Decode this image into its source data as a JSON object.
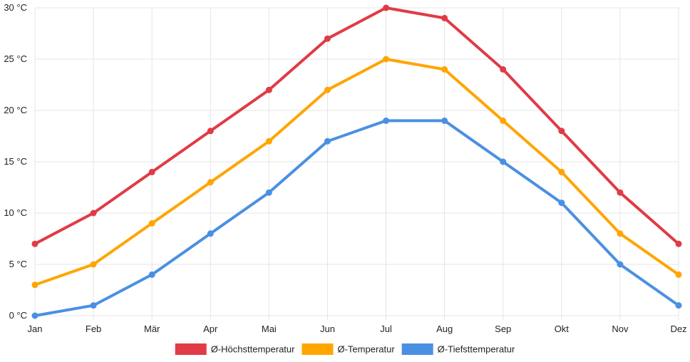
{
  "chart_data": {
    "type": "line",
    "categories": [
      "Jan",
      "Feb",
      "Mär",
      "Apr",
      "Mai",
      "Jun",
      "Jul",
      "Aug",
      "Sep",
      "Okt",
      "Nov",
      "Dez"
    ],
    "y_tick_labels": [
      "0 °C",
      "5 °C",
      "10 °C",
      "15 °C",
      "20 °C",
      "25 °C",
      "30 °C"
    ],
    "ylim": [
      0,
      30
    ],
    "y_tick_step": 5,
    "grid": true,
    "legend_position": "bottom",
    "series": [
      {
        "name": "Ø-Höchsttemperatur",
        "color": "#e03b46",
        "values": [
          7,
          10,
          14,
          18,
          22,
          27,
          30,
          29,
          24,
          18,
          12,
          7
        ]
      },
      {
        "name": "Ø-Temperatur",
        "color": "#ffa500",
        "values": [
          3,
          5,
          9,
          13,
          17,
          22,
          25,
          24,
          19,
          14,
          8,
          4
        ]
      },
      {
        "name": "Ø-Tiefsttemperatur",
        "color": "#4a90e2",
        "values": [
          0,
          1,
          4,
          8,
          12,
          17,
          19,
          19,
          15,
          11,
          5,
          1
        ]
      }
    ]
  }
}
